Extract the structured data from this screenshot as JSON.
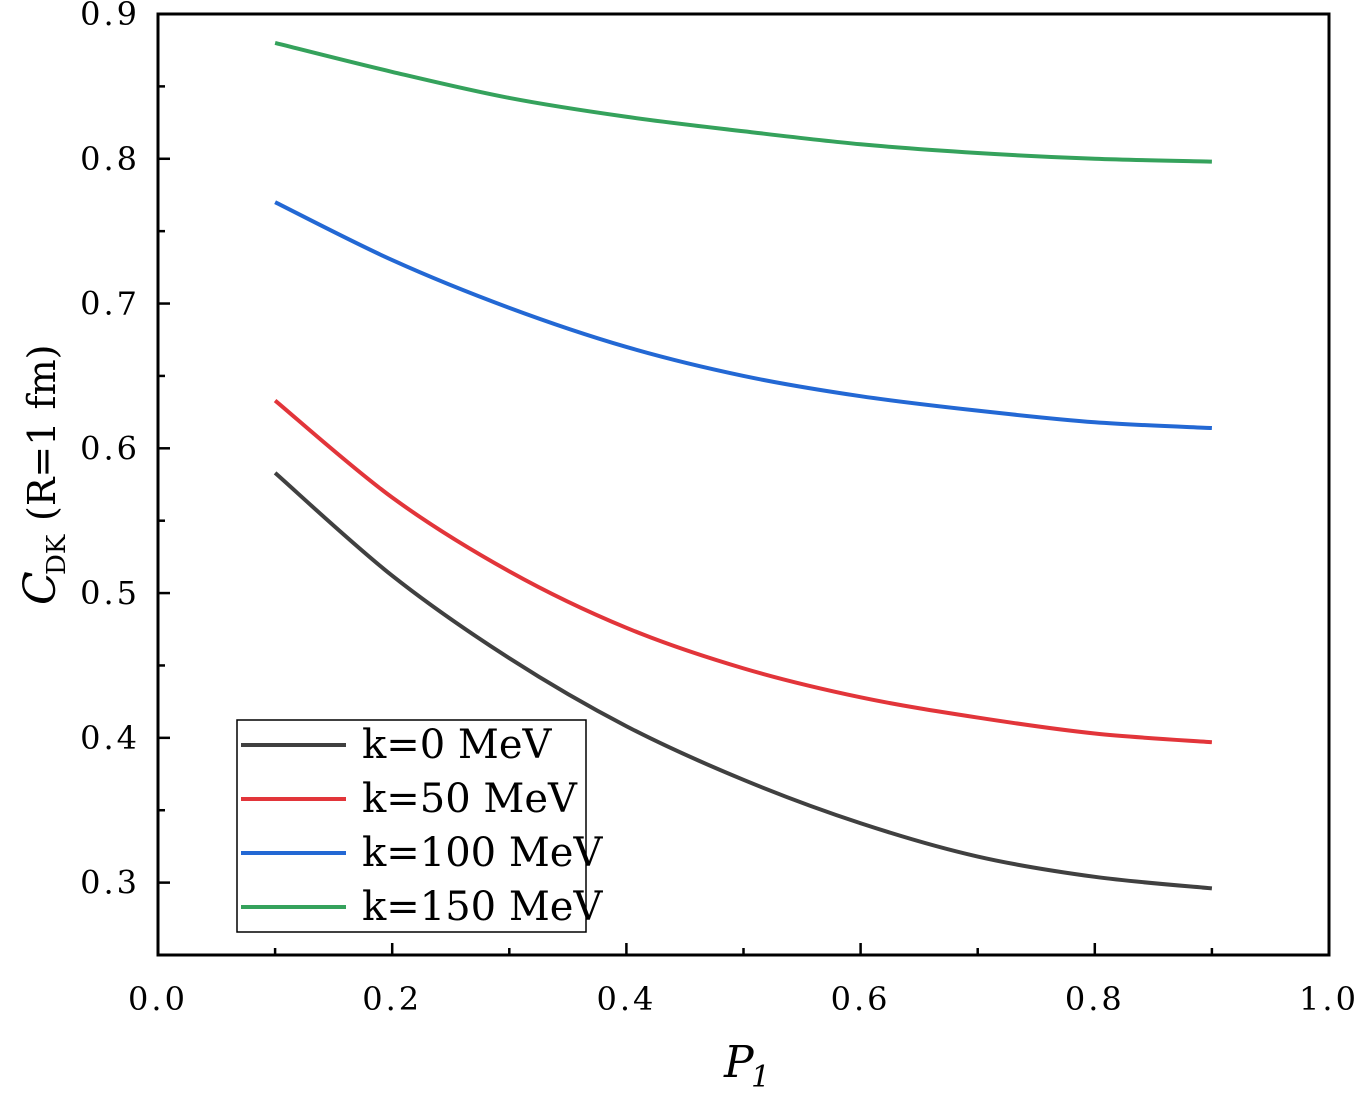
{
  "chart_data": {
    "type": "line",
    "title": "",
    "xlabel": "P",
    "xlabel_sub": "1",
    "ylabel_main": "C",
    "ylabel_sub": "DK",
    "ylabel_suffix": "(R=1  fm)",
    "xlim": [
      0.0,
      1.0
    ],
    "ylim": [
      0.25,
      0.9
    ],
    "xticks": [
      "0.0",
      "0.2",
      "0.4",
      "0.6",
      "0.8",
      "1.0"
    ],
    "yticks": [
      "0.3",
      "0.4",
      "0.5",
      "0.6",
      "0.7",
      "0.8",
      "0.9"
    ],
    "grid": false,
    "legend_position": "bottom-left",
    "x": [
      0.1,
      0.2,
      0.3,
      0.4,
      0.5,
      0.6,
      0.7,
      0.8,
      0.9
    ],
    "series": [
      {
        "name": "k=0 MeV",
        "color": "#404040",
        "values": [
          0.583,
          0.512,
          0.455,
          0.408,
          0.371,
          0.341,
          0.318,
          0.304,
          0.296
        ]
      },
      {
        "name": "k=50 MeV",
        "color": "#e2353a",
        "values": [
          0.633,
          0.566,
          0.515,
          0.476,
          0.448,
          0.428,
          0.414,
          0.403,
          0.397
        ]
      },
      {
        "name": "k=100 MeV",
        "color": "#2368d4",
        "values": [
          0.77,
          0.73,
          0.697,
          0.67,
          0.65,
          0.636,
          0.626,
          0.618,
          0.614
        ]
      },
      {
        "name": "k=150 MeV",
        "color": "#35a25c",
        "values": [
          0.88,
          0.86,
          0.842,
          0.829,
          0.819,
          0.81,
          0.804,
          0.8,
          0.798
        ]
      }
    ]
  }
}
